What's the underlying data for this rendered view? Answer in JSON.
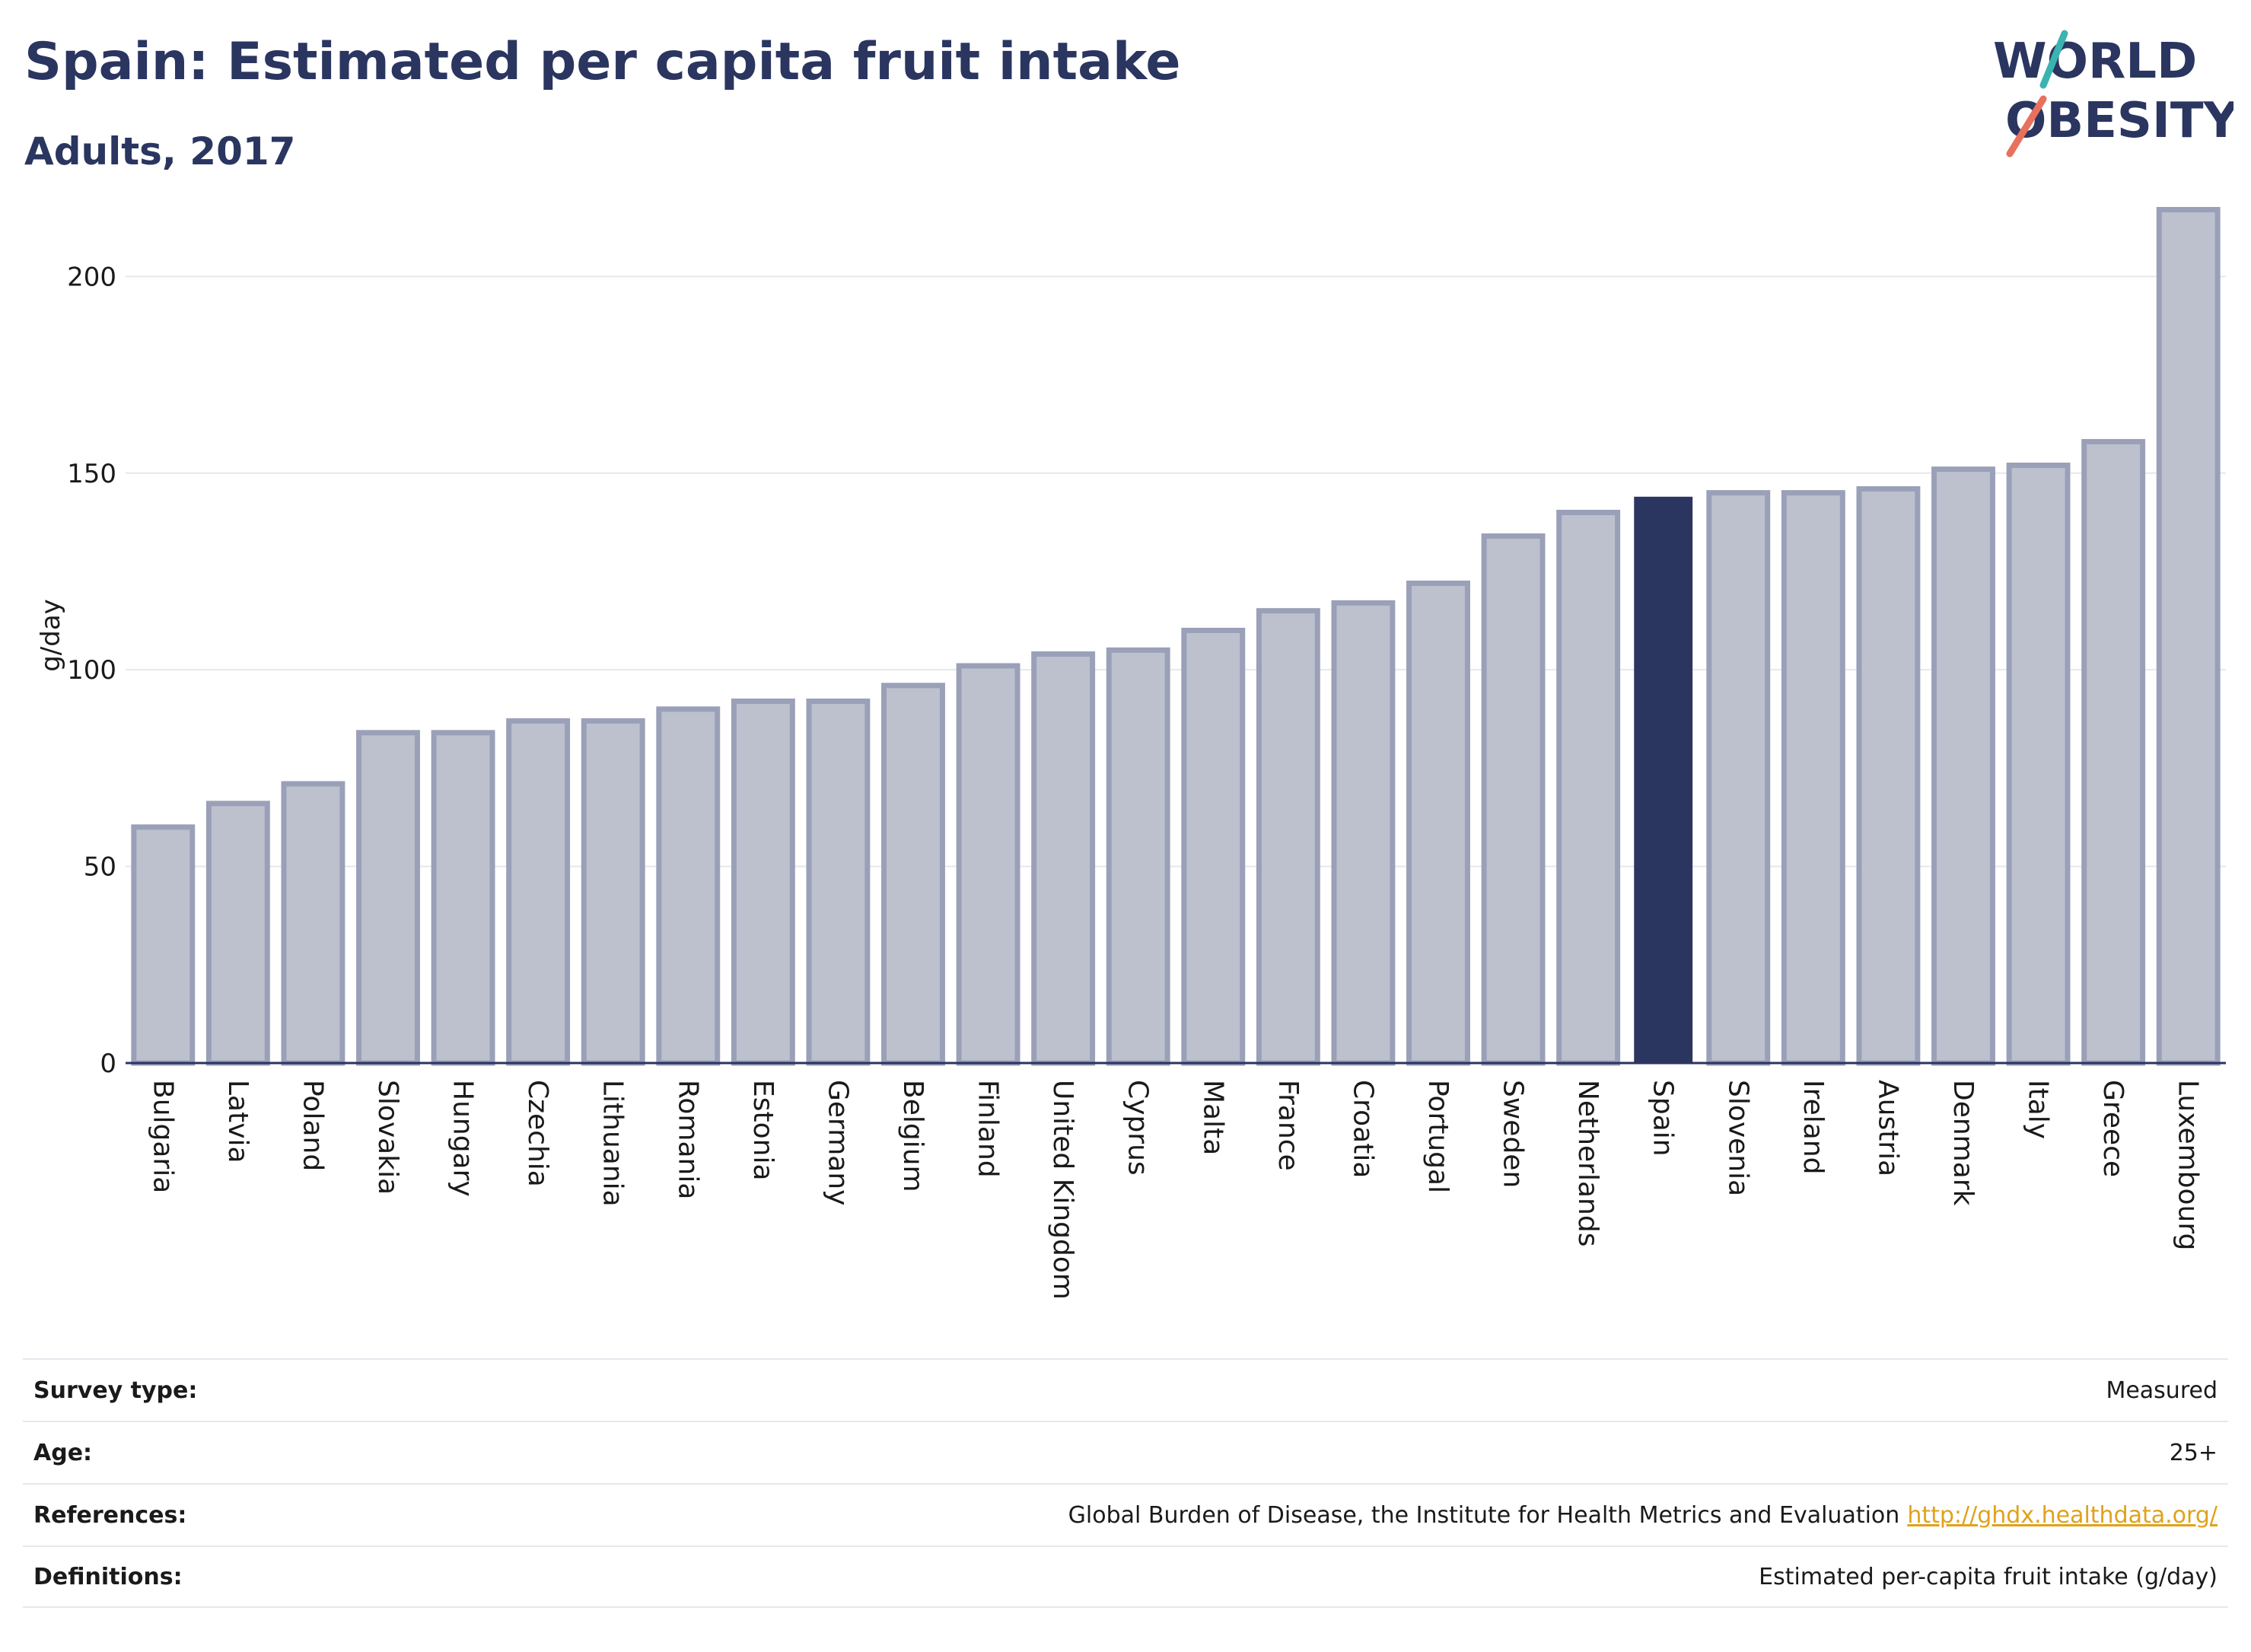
{
  "header": {
    "title": "Spain: Estimated per capita fruit intake",
    "subtitle": "Adults, 2017"
  },
  "logo": {
    "line1": "WORLD",
    "line2": "OBESITY",
    "colors": {
      "text": "#2a3560",
      "teal": "#3bb3b0",
      "coral": "#e8705c"
    }
  },
  "chart_data": {
    "type": "bar",
    "ylabel": "g/day",
    "ylim": [
      0,
      220
    ],
    "yticks": [
      0,
      50,
      100,
      150,
      200
    ],
    "grid": true,
    "highlight": "Spain",
    "colors": {
      "bar": "#bdc1ce",
      "bar_edge": "#9aa0b8",
      "highlight": "#2a3560"
    },
    "categories": [
      "Bulgaria",
      "Latvia",
      "Poland",
      "Slovakia",
      "Hungary",
      "Czechia",
      "Lithuania",
      "Romania",
      "Estonia",
      "Germany",
      "Belgium",
      "Finland",
      "United Kingdom",
      "Cyprus",
      "Malta",
      "France",
      "Croatia",
      "Portugal",
      "Sweden",
      "Netherlands",
      "Spain",
      "Slovenia",
      "Ireland",
      "Austria",
      "Denmark",
      "Italy",
      "Greece",
      "Luxembourg"
    ],
    "values": [
      60,
      66,
      71,
      84,
      84,
      87,
      87,
      90,
      92,
      92,
      96,
      101,
      104,
      105,
      110,
      115,
      117,
      122,
      134,
      140,
      144,
      145,
      145,
      146,
      151,
      152,
      158,
      217
    ]
  },
  "info": {
    "survey_type_label": "Survey type:",
    "survey_type_value": "Measured",
    "age_label": "Age:",
    "age_value": "25+",
    "references_label": "References:",
    "references_value": "Global Burden of Disease, the Institute for Health Metrics and Evaluation",
    "references_link": "http://ghdx.healthdata.org/",
    "definitions_label": "Definitions:",
    "definitions_value": "Estimated per-capita fruit intake (g/day)"
  }
}
